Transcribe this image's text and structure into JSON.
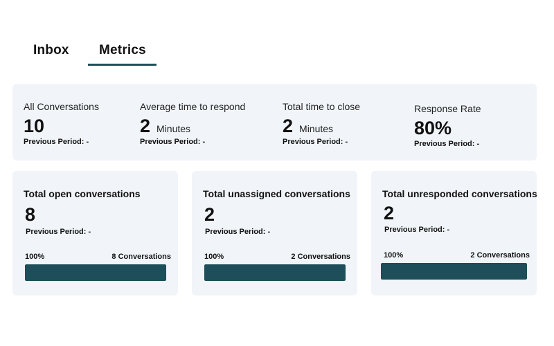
{
  "tabs": [
    {
      "label": "Inbox",
      "active": false
    },
    {
      "label": "Metrics",
      "active": true
    }
  ],
  "summary": [
    {
      "label": "All Conversations",
      "value": "10",
      "unit": "",
      "previous": "Previous Period: -"
    },
    {
      "label": "Average time to respond",
      "value": "2",
      "unit": "Minutes",
      "previous": "Previous Period: -"
    },
    {
      "label": "Total time to close",
      "value": "2",
      "unit": "Minutes",
      "previous": "Previous Period: -"
    },
    {
      "label": "Response Rate",
      "value": "80%",
      "unit": "",
      "previous": "Previous Period: -"
    }
  ],
  "cards": [
    {
      "title": "Total open conversations",
      "value": "8",
      "previous": "Previous Period: -",
      "percent_label": "100%",
      "count_label": "8 Conversations",
      "fill_fraction": 1.0
    },
    {
      "title": "Total unassigned conversations",
      "value": "2",
      "previous": "Previous Period: -",
      "percent_label": "100%",
      "count_label": "2 Conversations",
      "fill_fraction": 1.0
    },
    {
      "title": "Total unresponded conversations",
      "value": "2",
      "previous": "Previous Period: -",
      "percent_label": "100%",
      "count_label": "2 Conversations",
      "fill_fraction": 1.0
    }
  ],
  "colors": {
    "accent": "#1d4e59",
    "panel_background": "#f1f5f9"
  }
}
